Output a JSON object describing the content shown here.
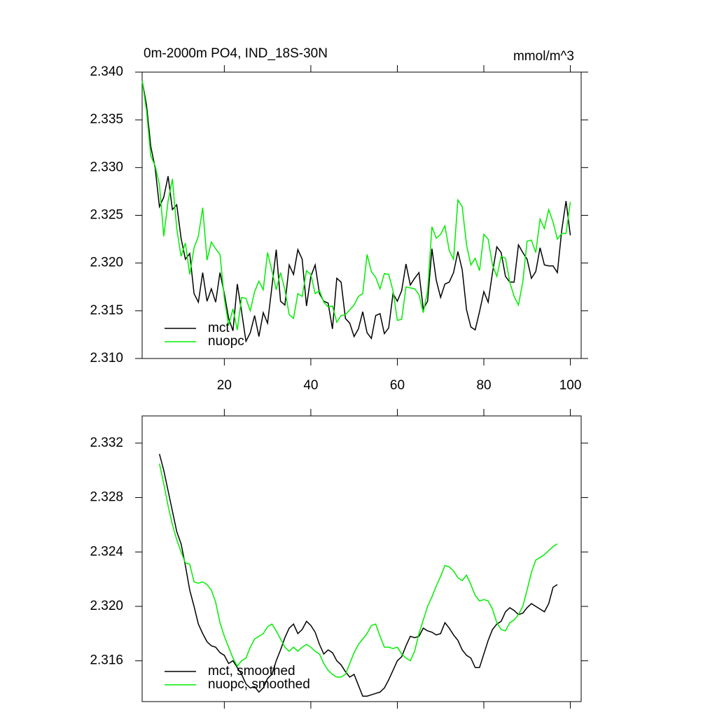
{
  "chart_data": [
    {
      "type": "line",
      "title": "0m-2000m PO4, IND_18S-30N",
      "units": "mmol/m^3",
      "x": [
        1,
        2,
        3,
        4,
        5,
        6,
        7,
        8,
        9,
        10,
        11,
        12,
        13,
        14,
        15,
        16,
        17,
        18,
        19,
        20,
        21,
        22,
        23,
        24,
        25,
        26,
        27,
        28,
        29,
        30,
        31,
        32,
        33,
        34,
        35,
        36,
        37,
        38,
        39,
        40,
        41,
        42,
        43,
        44,
        45,
        46,
        47,
        48,
        49,
        50,
        51,
        52,
        53,
        54,
        55,
        56,
        57,
        58,
        59,
        60,
        61,
        62,
        63,
        64,
        65,
        66,
        67,
        68,
        69,
        70,
        71,
        72,
        73,
        74,
        75,
        76,
        77,
        78,
        79,
        80,
        81,
        82,
        83,
        84,
        85,
        86,
        87,
        88,
        89,
        90,
        91,
        92,
        93,
        94,
        95,
        96,
        97,
        98,
        99,
        100
      ],
      "series": [
        {
          "name": "mct",
          "color": "#000000",
          "values": [
            2.3391,
            2.3366,
            2.3322,
            2.33,
            2.3259,
            2.3269,
            2.3291,
            2.3256,
            2.3261,
            2.3226,
            2.3204,
            2.321,
            2.3168,
            2.3159,
            2.319,
            2.316,
            2.3173,
            2.3159,
            2.319,
            2.3168,
            2.3142,
            2.3129,
            2.3178,
            2.3149,
            2.3118,
            2.3127,
            2.3145,
            2.3123,
            2.3148,
            2.3137,
            2.3175,
            2.3214,
            2.316,
            2.3156,
            2.3198,
            2.3188,
            2.3214,
            2.3204,
            2.3155,
            2.3186,
            2.3198,
            2.3168,
            2.316,
            2.3158,
            2.3131,
            2.3184,
            2.318,
            2.3142,
            2.3137,
            2.3123,
            2.3131,
            2.3149,
            2.3127,
            2.3121,
            2.3145,
            2.3147,
            2.3126,
            2.3132,
            2.3168,
            2.316,
            2.3171,
            2.3199,
            2.3177,
            2.3184,
            2.319,
            2.3152,
            2.316,
            2.3215,
            2.3182,
            2.3164,
            2.3178,
            2.318,
            2.319,
            2.3212,
            2.3193,
            2.3151,
            2.3133,
            2.313,
            2.3149,
            2.317,
            2.3159,
            2.319,
            2.3217,
            2.3211,
            2.3186,
            2.318,
            2.318,
            2.3219,
            2.3211,
            2.3204,
            2.3184,
            2.3191,
            2.3216,
            2.3198,
            2.3197,
            2.3197,
            2.319,
            2.3234,
            2.3265,
            2.3229
          ]
        },
        {
          "name": "nuopc",
          "color": "#00ee00",
          "values": [
            2.3391,
            2.336,
            2.3312,
            2.3302,
            2.3282,
            2.3228,
            2.3265,
            2.3288,
            2.3236,
            2.3207,
            2.3221,
            2.3188,
            2.3216,
            2.3228,
            2.3258,
            2.3203,
            2.3222,
            2.3215,
            2.3209,
            2.3163,
            2.3135,
            2.3152,
            2.313,
            2.3164,
            2.3163,
            2.315,
            2.317,
            2.3181,
            2.3172,
            2.3211,
            2.3192,
            2.3172,
            2.319,
            2.3172,
            2.3146,
            2.3142,
            2.3168,
            2.3165,
            2.3192,
            2.3188,
            2.3168,
            2.3171,
            2.3159,
            2.3154,
            2.3155,
            2.3138,
            2.3145,
            2.3146,
            2.3151,
            2.3156,
            2.3165,
            2.3168,
            2.3209,
            2.3191,
            2.3185,
            2.3173,
            2.3189,
            2.3188,
            2.3171,
            2.314,
            2.3141,
            2.3175,
            2.3174,
            2.3173,
            2.3167,
            2.3148,
            2.3171,
            2.3238,
            2.3226,
            2.323,
            2.3239,
            2.3213,
            2.3204,
            2.3266,
            2.3259,
            2.3219,
            2.3198,
            2.3205,
            2.3192,
            2.323,
            2.3225,
            2.3198,
            2.3186,
            2.3207,
            2.3205,
            2.318,
            2.3165,
            2.3156,
            2.318,
            2.3223,
            2.3224,
            2.3211,
            2.3246,
            2.3236,
            2.3256,
            2.3243,
            2.3225,
            2.3231,
            2.3231,
            2.3264
          ]
        }
      ],
      "xlim": [
        1,
        102.5
      ],
      "ylim": [
        2.31,
        2.34
      ],
      "xticks": [
        20,
        40,
        60,
        80,
        100
      ],
      "yticks": [
        {
          "value": 2.31,
          "label": "2.310"
        },
        2.315,
        {
          "value": 2.32,
          "label": "2.320"
        },
        2.325,
        {
          "value": 2.33,
          "label": "2.330"
        },
        2.335,
        {
          "value": 2.34,
          "label": "2.340"
        }
      ],
      "legend": "lower left"
    },
    {
      "type": "line",
      "x": [
        5,
        6,
        7,
        8,
        9,
        10,
        11,
        12,
        13,
        14,
        15,
        16,
        17,
        18,
        19,
        20,
        21,
        22,
        23,
        24,
        25,
        26,
        27,
        28,
        29,
        30,
        31,
        32,
        33,
        34,
        35,
        36,
        37,
        38,
        39,
        40,
        41,
        42,
        43,
        44,
        45,
        46,
        47,
        48,
        49,
        50,
        51,
        52,
        53,
        54,
        55,
        56,
        57,
        58,
        59,
        60,
        61,
        62,
        63,
        64,
        65,
        66,
        67,
        68,
        69,
        70,
        71,
        72,
        73,
        74,
        75,
        76,
        77,
        78,
        79,
        80,
        81,
        82,
        83,
        84,
        85,
        86,
        87,
        88,
        89,
        90,
        91,
        92,
        93,
        94,
        95,
        96,
        97
      ],
      "series": [
        {
          "name": "mct, smoothed",
          "color": "#000000",
          "values": [
            2.3312,
            2.33,
            2.3285,
            2.327,
            2.3255,
            2.3246,
            2.323,
            2.3212,
            2.32,
            2.3187,
            2.318,
            2.3174,
            2.3171,
            2.317,
            2.3166,
            2.3164,
            2.3158,
            2.316,
            2.3155,
            2.315,
            2.3143,
            2.314,
            2.3141,
            2.3137,
            2.314,
            2.3147,
            2.315,
            2.316,
            2.3168,
            2.3177,
            2.3184,
            2.3187,
            2.318,
            2.3183,
            2.3189,
            2.3186,
            2.3181,
            2.3172,
            2.3165,
            2.3168,
            2.3166,
            2.316,
            2.3157,
            2.3152,
            2.3148,
            2.315,
            2.3142,
            2.3134,
            2.3134,
            2.3135,
            2.3136,
            2.3137,
            2.314,
            2.3146,
            2.3153,
            2.316,
            2.3163,
            2.3171,
            2.3178,
            2.3177,
            2.3178,
            2.3184,
            2.3182,
            2.3181,
            2.3179,
            2.318,
            2.3188,
            2.3184,
            2.3179,
            2.3175,
            2.3168,
            2.3164,
            2.3162,
            2.3155,
            2.3155,
            2.3165,
            2.3175,
            2.3183,
            2.3187,
            2.3189,
            2.3196,
            2.3199,
            2.3197,
            2.3194,
            2.3195,
            2.3199,
            2.3202,
            2.32,
            2.3198,
            2.3196,
            2.3202,
            2.3214,
            2.3216
          ]
        },
        {
          "name": "nuopc, smoothed",
          "color": "#00ee00",
          "values": [
            2.3305,
            2.329,
            2.3274,
            2.326,
            2.3249,
            2.324,
            2.3232,
            2.3231,
            2.3218,
            2.3217,
            2.3218,
            2.3216,
            2.3212,
            2.3203,
            2.3188,
            2.3178,
            2.317,
            2.3162,
            2.3156,
            2.316,
            2.3162,
            2.317,
            2.3176,
            2.3178,
            2.318,
            2.3185,
            2.3187,
            2.3182,
            2.3176,
            2.317,
            2.3167,
            2.317,
            2.3167,
            2.317,
            2.3172,
            2.317,
            2.3167,
            2.3165,
            2.3158,
            2.3153,
            2.315,
            2.3148,
            2.3148,
            2.315,
            2.3158,
            2.3166,
            2.3172,
            2.3176,
            2.318,
            2.3186,
            2.3187,
            2.3178,
            2.317,
            2.317,
            2.3169,
            2.317,
            2.3165,
            2.3162,
            2.316,
            2.3167,
            2.318,
            2.319,
            2.32,
            2.3207,
            2.3215,
            2.3222,
            2.323,
            2.3229,
            2.3226,
            2.3221,
            2.3219,
            2.3223,
            2.3216,
            2.3208,
            2.3204,
            2.3205,
            2.3204,
            2.3198,
            2.3188,
            2.3183,
            2.3182,
            2.3188,
            2.319,
            2.3194,
            2.32,
            2.3212,
            2.3225,
            2.3234,
            2.3236,
            2.3238,
            2.3241,
            2.3244,
            2.3246
          ]
        }
      ],
      "xlim": [
        1,
        102.5
      ],
      "ylim": [
        2.313,
        2.334
      ],
      "xticks": [
        20,
        40,
        60,
        80,
        100
      ],
      "yticks": [
        2.316,
        {
          "value": 2.32,
          "label": "2.320"
        },
        2.324,
        2.328,
        2.332
      ],
      "legend": "lower left"
    }
  ]
}
